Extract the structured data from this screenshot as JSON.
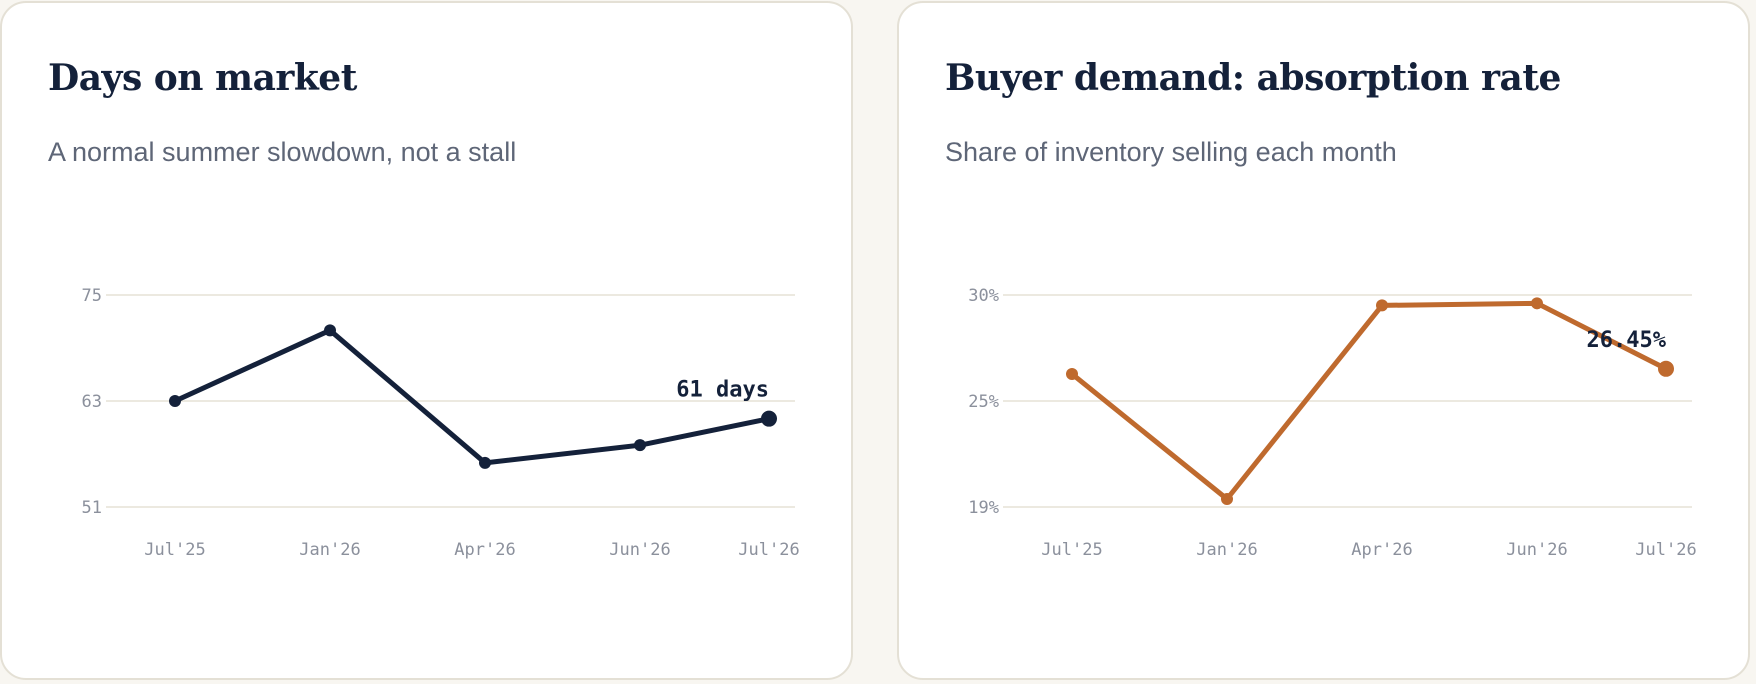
{
  "colors": {
    "navy": "#14213a",
    "orange": "#bf6a2e",
    "grid": "#e6e2d6",
    "tick": "#8b909c"
  },
  "cards": [
    {
      "title": "Days on market",
      "subtitle": "A normal summer slowdown, not a stall"
    },
    {
      "title": "Buyer demand: absorption rate",
      "subtitle": "Share of inventory selling each month"
    }
  ],
  "chart_data": [
    {
      "type": "line",
      "title": "Days on market",
      "subtitle": "A normal summer slowdown, not a stall",
      "x": [
        "Jul'25",
        "Jan'26",
        "Apr'26",
        "Jun'26",
        "Jul'26"
      ],
      "y_ticks": [
        75,
        63,
        51
      ],
      "y_tick_labels": [
        "75",
        "63",
        "51"
      ],
      "ylim": [
        51,
        75
      ],
      "series": [
        {
          "values": [
            63,
            71,
            56,
            58,
            61
          ]
        }
      ],
      "end_label": "61 days",
      "color": "#14213a",
      "grid": true
    },
    {
      "type": "line",
      "title": "Buyer demand: absorption rate",
      "subtitle": "Share of inventory selling each month",
      "x": [
        "Jul'25",
        "Jan'26",
        "Apr'26",
        "Jun'26",
        "Jul'26"
      ],
      "y_ticks": [
        30,
        25,
        19
      ],
      "y_tick_labels": [
        "30%",
        "25%",
        "19%"
      ],
      "ylim": [
        19,
        30
      ],
      "y_ref_values": [
        30,
        24.9,
        19.6
      ],
      "series": [
        {
          "values": [
            26.2,
            20.0,
            29.5,
            29.6,
            26.45
          ]
        }
      ],
      "end_label": "26.45%",
      "color": "#bf6a2e",
      "grid": true
    }
  ]
}
